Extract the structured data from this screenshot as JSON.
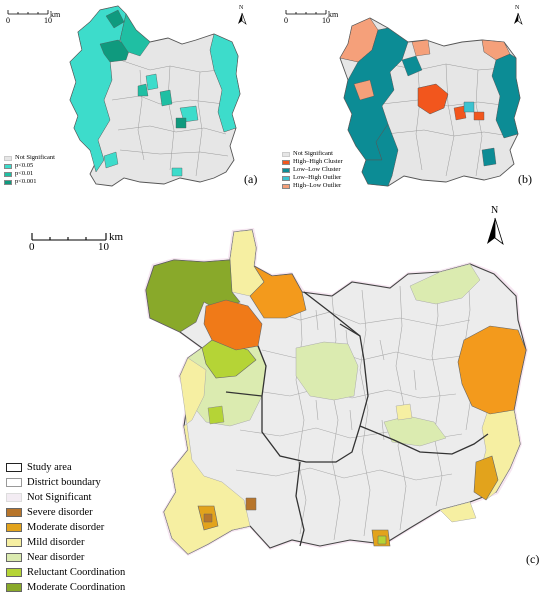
{
  "panel_a": {
    "letter": "(a)",
    "scale": {
      "zero": "0",
      "ten": "10",
      "unit": "km"
    },
    "north": "N",
    "legend": [
      {
        "label": "Not Significant",
        "color": "#e6e6e6"
      },
      {
        "label": "p<0.05",
        "color": "#3ddccb"
      },
      {
        "label": "p<0.01",
        "color": "#1fbfa3"
      },
      {
        "label": "p<0.001",
        "color": "#0f9a7e"
      }
    ]
  },
  "panel_b": {
    "letter": "(b)",
    "scale": {
      "zero": "0",
      "ten": "10",
      "unit": "km"
    },
    "north": "N",
    "legend": [
      {
        "label": "Not Significant",
        "color": "#e6e6e6"
      },
      {
        "label": "High–High Cluster",
        "color": "#f2561d"
      },
      {
        "label": "Low–Low Cluster",
        "color": "#0c8c95"
      },
      {
        "label": "Low–High Outlier",
        "color": "#3cc3d0"
      },
      {
        "label": "High–Low Outlier",
        "color": "#f5a07a"
      }
    ]
  },
  "panel_c": {
    "letter": "(c)",
    "scale": {
      "zero": "0",
      "ten": "10",
      "unit": "km"
    },
    "north": "N",
    "legend": [
      {
        "label": "Study area",
        "color": "#ffffff",
        "style": "study"
      },
      {
        "label": "District boundary",
        "color": "#ffffff",
        "style": "district"
      },
      {
        "label": "Not Significant",
        "color": "#f3ecf3"
      },
      {
        "label": "Severe disorder",
        "color": "#b7752b"
      },
      {
        "label": "Moderate disorder",
        "color": "#e2a31c"
      },
      {
        "label": "Mild disorder",
        "color": "#f6efa2"
      },
      {
        "label": "Near disorder",
        "color": "#dbebb0"
      },
      {
        "label": "Reluctant Coordination",
        "color": "#b5d436"
      },
      {
        "label": "Moderate Coordination",
        "color": "#89a92a"
      }
    ]
  },
  "colors": {
    "not_significant": "#e6e6e6",
    "boundary": "#555555",
    "orange_c": "#f39a1c",
    "dark_orange_c": "#f07a18"
  }
}
